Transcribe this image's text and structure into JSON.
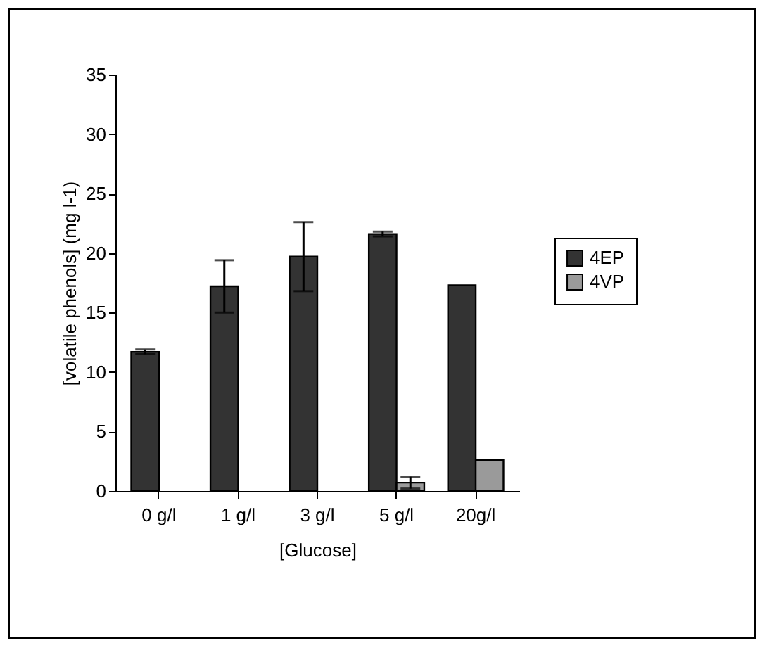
{
  "chart_data": {
    "type": "bar",
    "xlabel": "[Glucose]",
    "ylabel": "[volatile phenols] (mg l-1)",
    "categories": [
      "0 g/l",
      "1 g/l",
      "3 g/l",
      "5 g/l",
      "20g/l"
    ],
    "series": [
      {
        "name": "4EP",
        "color": "#333333",
        "values": [
          11.7,
          17.2,
          19.7,
          21.6,
          17.3
        ],
        "errors": [
          0.2,
          2.2,
          2.9,
          0.2,
          null
        ]
      },
      {
        "name": "4VP",
        "color": "#9a9a9a",
        "values": [
          0,
          0,
          0,
          0.7,
          2.6
        ],
        "errors": [
          null,
          null,
          null,
          0.5,
          null
        ]
      }
    ],
    "ylim": [
      0,
      35
    ],
    "yticks": [
      0,
      5,
      10,
      15,
      20,
      25,
      30,
      35
    ],
    "grid": false,
    "legend": "right"
  }
}
